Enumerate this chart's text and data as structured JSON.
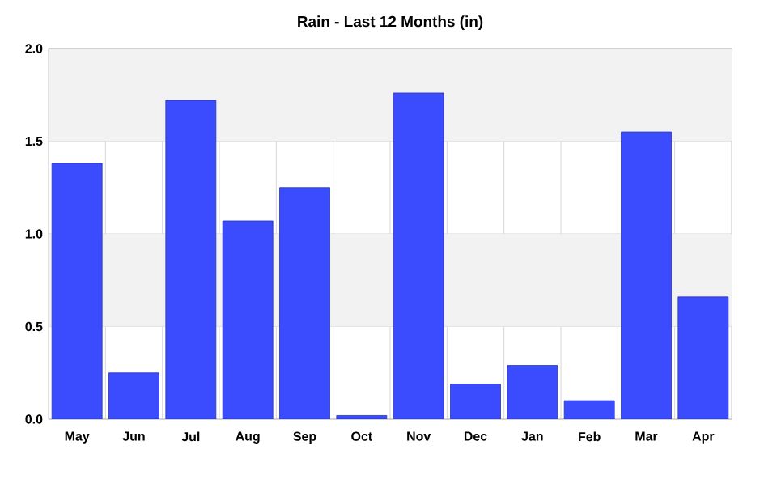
{
  "chart_data": {
    "type": "bar",
    "title": "Rain - Last 12 Months (in)",
    "categories": [
      "May",
      "Jun",
      "Jul",
      "Aug",
      "Sep",
      "Oct",
      "Nov",
      "Dec",
      "Jan",
      "Feb",
      "Mar",
      "Apr"
    ],
    "values": [
      1.38,
      0.25,
      1.72,
      1.07,
      1.25,
      0.02,
      1.76,
      0.19,
      0.29,
      0.1,
      1.55,
      0.66
    ],
    "color": "#3b4cff",
    "ylim": [
      0,
      2
    ],
    "yticks": [
      {
        "value": 0,
        "label": "0.0"
      },
      {
        "value": 0.5,
        "label": "0.5"
      },
      {
        "value": 1,
        "label": "1.0"
      },
      {
        "value": 1.5,
        "label": "1.5"
      },
      {
        "value": 2,
        "label": "2.0"
      }
    ],
    "grid": true,
    "bands": [
      {
        "axis": "y",
        "from": 0.5,
        "to": 1.0,
        "color": "#f2f2f2"
      },
      {
        "axis": "y",
        "from": 1.5,
        "to": 2.0,
        "color": "#f2f2f2"
      }
    ]
  }
}
